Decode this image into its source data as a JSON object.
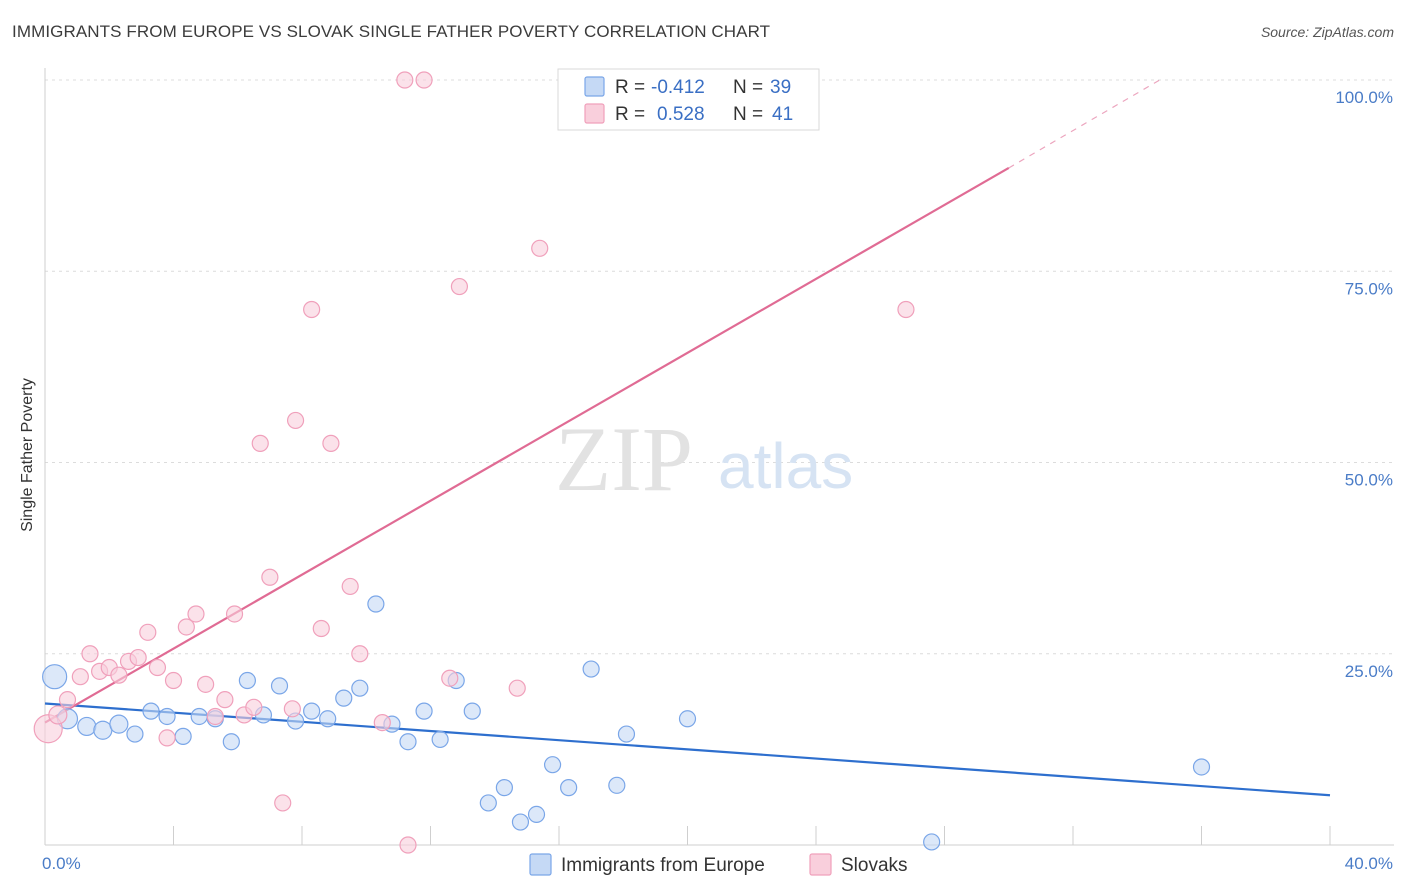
{
  "chart_data": {
    "type": "scatter",
    "title": "IMMIGRANTS FROM EUROPE VS SLOVAK SINGLE FATHER POVERTY CORRELATION CHART",
    "source": "Source: ZipAtlas.com",
    "xlabel": "",
    "ylabel": "Single Father Poverty",
    "xlim": [
      0,
      40
    ],
    "ylim": [
      0,
      100
    ],
    "x_tick_labels": [
      "0.0%",
      "40.0%"
    ],
    "y_ticks": [
      25,
      50,
      75,
      100
    ],
    "y_tick_labels": [
      "25.0%",
      "50.0%",
      "75.0%",
      "100.0%"
    ],
    "grid": true,
    "watermark": [
      "ZIP",
      "atlas"
    ],
    "legend": {
      "position": "top-center",
      "entries": [
        {
          "r_label": "R =",
          "r_value": "-0.412",
          "n_label": "N =",
          "n_value": "39"
        },
        {
          "r_label": "R =",
          "r_value": "0.528",
          "n_label": "N =",
          "n_value": "41"
        }
      ]
    },
    "series": [
      {
        "name": "Immigrants from Europe",
        "color": "#7aa6e8",
        "fill": "#c5d9f5",
        "line_color": "#2e6fce",
        "trend": {
          "x0": 0,
          "y0": 18.5,
          "x1": 40,
          "y1": 6.5
        },
        "points": [
          [
            0.3,
            22,
            12
          ],
          [
            0.7,
            16.5,
            10
          ],
          [
            1.3,
            15.5,
            9
          ],
          [
            1.8,
            15,
            9
          ],
          [
            2.3,
            15.8,
            9
          ],
          [
            2.8,
            14.5,
            8
          ],
          [
            3.3,
            17.5,
            8
          ],
          [
            3.8,
            16.8,
            8
          ],
          [
            4.3,
            14.2,
            8
          ],
          [
            4.8,
            16.8,
            8
          ],
          [
            5.3,
            16.5,
            8
          ],
          [
            5.8,
            13.5,
            8
          ],
          [
            6.3,
            21.5,
            8
          ],
          [
            6.8,
            17,
            8
          ],
          [
            7.3,
            20.8,
            8
          ],
          [
            7.8,
            16.2,
            8
          ],
          [
            8.3,
            17.5,
            8
          ],
          [
            8.8,
            16.5,
            8
          ],
          [
            9.3,
            19.2,
            8
          ],
          [
            9.8,
            20.5,
            8
          ],
          [
            10.3,
            31.5,
            8
          ],
          [
            10.8,
            15.8,
            8
          ],
          [
            11.3,
            13.5,
            8
          ],
          [
            11.8,
            17.5,
            8
          ],
          [
            12.3,
            13.8,
            8
          ],
          [
            12.8,
            21.5,
            8
          ],
          [
            13.3,
            17.5,
            8
          ],
          [
            13.8,
            5.5,
            8
          ],
          [
            14.3,
            7.5,
            8
          ],
          [
            14.8,
            3,
            8
          ],
          [
            15.3,
            4,
            8
          ],
          [
            15.8,
            10.5,
            8
          ],
          [
            16.3,
            7.5,
            8
          ],
          [
            17.0,
            23,
            8
          ],
          [
            17.8,
            7.8,
            8
          ],
          [
            18.1,
            14.5,
            8
          ],
          [
            20.0,
            16.5,
            8
          ],
          [
            27.6,
            0.4,
            8
          ],
          [
            36.0,
            10.2,
            8
          ]
        ]
      },
      {
        "name": "Slovaks",
        "color": "#f0a0bb",
        "fill": "#f9cfdc",
        "line_color": "#e06b94",
        "trend": {
          "x0": 0,
          "y0": 16,
          "x1": 30,
          "y1": 88.5
        },
        "trend_dashed_to": {
          "x": 34.7,
          "y": 100
        },
        "points": [
          [
            0.1,
            15.2,
            14
          ],
          [
            0.4,
            17,
            9
          ],
          [
            0.7,
            19,
            8
          ],
          [
            1.1,
            22,
            8
          ],
          [
            1.4,
            25,
            8
          ],
          [
            1.7,
            22.7,
            8
          ],
          [
            2.0,
            23.2,
            8
          ],
          [
            2.3,
            22.2,
            8
          ],
          [
            2.6,
            24,
            8
          ],
          [
            2.9,
            24.5,
            8
          ],
          [
            3.2,
            27.8,
            8
          ],
          [
            3.5,
            23.2,
            8
          ],
          [
            3.8,
            14,
            8
          ],
          [
            4.0,
            21.5,
            8
          ],
          [
            4.4,
            28.5,
            8
          ],
          [
            4.7,
            30.2,
            8
          ],
          [
            5.0,
            21,
            8
          ],
          [
            5.3,
            16.8,
            8
          ],
          [
            5.6,
            19,
            8
          ],
          [
            5.9,
            30.2,
            8
          ],
          [
            6.2,
            17,
            8
          ],
          [
            6.5,
            18,
            8
          ],
          [
            6.7,
            52.5,
            8
          ],
          [
            7.0,
            35,
            8
          ],
          [
            7.4,
            5.5,
            8
          ],
          [
            7.7,
            17.8,
            8
          ],
          [
            7.8,
            55.5,
            8
          ],
          [
            8.3,
            70,
            8
          ],
          [
            8.6,
            28.3,
            8
          ],
          [
            8.9,
            52.5,
            8
          ],
          [
            9.5,
            33.8,
            8
          ],
          [
            9.8,
            25,
            8
          ],
          [
            10.5,
            16,
            8
          ],
          [
            11.2,
            100,
            8
          ],
          [
            11.8,
            100,
            8
          ],
          [
            11.3,
            0,
            8
          ],
          [
            12.6,
            21.8,
            8
          ],
          [
            12.9,
            73,
            8
          ],
          [
            14.7,
            20.5,
            8
          ],
          [
            15.4,
            78,
            8
          ],
          [
            26.8,
            70,
            8
          ]
        ]
      }
    ]
  }
}
